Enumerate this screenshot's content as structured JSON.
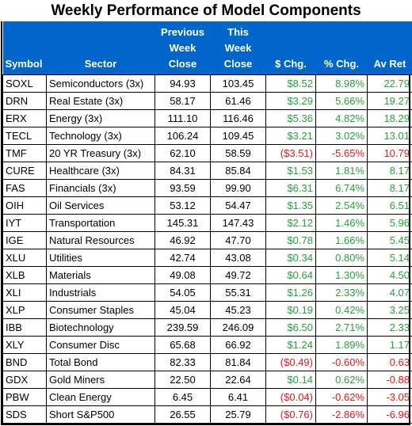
{
  "title": "Weekly Performance of Model Components",
  "headers": {
    "symbol": "Symbol",
    "sector": "Sector",
    "prev_close": [
      "Previous",
      "Week",
      "Close"
    ],
    "this_close": [
      "This",
      "Week",
      "Close"
    ],
    "dollar_chg": "$ Chg.",
    "pct_chg": "% Chg.",
    "av_ret": "Av Ret"
  },
  "rows": [
    {
      "symbol": "SOXL",
      "sector": "Semiconductors (3x)",
      "prev": "94.93",
      "this": "103.45",
      "dchg": "$8.52",
      "pchg": "8.98%",
      "avret": "22.79",
      "sign": "pos"
    },
    {
      "symbol": "DRN",
      "sector": "Real Estate (3x)",
      "prev": "58.17",
      "this": "61.46",
      "dchg": "$3.29",
      "pchg": "5.66%",
      "avret": "19.27",
      "sign": "pos"
    },
    {
      "symbol": "ERX",
      "sector": "Energy (3x)",
      "prev": "111.10",
      "this": "116.46",
      "dchg": "$5.36",
      "pchg": "4.82%",
      "avret": "18.29",
      "sign": "pos"
    },
    {
      "symbol": "TECL",
      "sector": "Technology (3x)",
      "prev": "106.24",
      "this": "109.45",
      "dchg": "$3.21",
      "pchg": "3.02%",
      "avret": "13.01",
      "sign": "pos"
    },
    {
      "symbol": "TMF",
      "sector": "20 YR Treasury (3x)",
      "prev": "62.10",
      "this": "58.59",
      "dchg": "($3.51)",
      "pchg": "-5.65%",
      "avret": "10.79",
      "sign": "neg"
    },
    {
      "symbol": "CURE",
      "sector": "Healthcare (3x)",
      "prev": "84.31",
      "this": "85.84",
      "dchg": "$1.53",
      "pchg": "1.81%",
      "avret": "8.17",
      "sign": "pos"
    },
    {
      "symbol": "FAS",
      "sector": "Financials (3x)",
      "prev": "93.59",
      "this": "99.90",
      "dchg": "$6.31",
      "pchg": "6.74%",
      "avret": "8.17",
      "sign": "pos"
    },
    {
      "symbol": "OIH",
      "sector": "Oil Services",
      "prev": "53.12",
      "this": "54.47",
      "dchg": "$1.35",
      "pchg": "2.54%",
      "avret": "6.51",
      "sign": "pos"
    },
    {
      "symbol": "IYT",
      "sector": "Transportation",
      "prev": "145.31",
      "this": "147.43",
      "dchg": "$2.12",
      "pchg": "1.46%",
      "avret": "5.96",
      "sign": "pos"
    },
    {
      "symbol": "IGE",
      "sector": "Natural Resources",
      "prev": "46.92",
      "this": "47.70",
      "dchg": "$0.78",
      "pchg": "1.66%",
      "avret": "5.45",
      "sign": "pos"
    },
    {
      "symbol": "XLU",
      "sector": "Utilities",
      "prev": "42.74",
      "this": "43.08",
      "dchg": "$0.34",
      "pchg": "0.80%",
      "avret": "5.14",
      "sign": "pos"
    },
    {
      "symbol": "XLB",
      "sector": "Materials",
      "prev": "49.08",
      "this": "49.72",
      "dchg": "$0.64",
      "pchg": "1.30%",
      "avret": "4.50",
      "sign": "pos"
    },
    {
      "symbol": "XLI",
      "sector": "Industrials",
      "prev": "54.05",
      "this": "55.31",
      "dchg": "$1.26",
      "pchg": "2.33%",
      "avret": "4.07",
      "sign": "pos"
    },
    {
      "symbol": "XLP",
      "sector": "Consumer Staples",
      "prev": "45.04",
      "this": "45.23",
      "dchg": "$0.19",
      "pchg": "0.42%",
      "avret": "3.25",
      "sign": "pos"
    },
    {
      "symbol": "IBB",
      "sector": "Biotechnology",
      "prev": "239.59",
      "this": "246.09",
      "dchg": "$6.50",
      "pchg": "2.71%",
      "avret": "2.33",
      "sign": "pos"
    },
    {
      "symbol": "XLY",
      "sector": "Consumer Disc",
      "prev": "65.68",
      "this": "66.92",
      "dchg": "$1.24",
      "pchg": "1.89%",
      "avret": "1.17",
      "sign": "pos"
    },
    {
      "symbol": "BND",
      "sector": "Total Bond",
      "prev": "82.33",
      "this": "81.84",
      "dchg": "($0.49)",
      "pchg": "-0.60%",
      "avret": "0.63",
      "sign": "neg"
    },
    {
      "symbol": "GDX",
      "sector": "Gold Miners",
      "prev": "22.50",
      "this": "22.64",
      "dchg": "$0.14",
      "pchg": "0.62%",
      "avret": "-0.88",
      "sign": "pos",
      "avsign": "neg"
    },
    {
      "symbol": "PBW",
      "sector": "Clean Energy",
      "prev": "6.45",
      "this": "6.41",
      "dchg": "($0.04)",
      "pchg": "-0.62%",
      "avret": "-3.05",
      "sign": "neg"
    },
    {
      "symbol": "SDS",
      "sector": "Short S&P500",
      "prev": "26.55",
      "this": "25.79",
      "dchg": "($0.76)",
      "pchg": "-2.86%",
      "avret": "-6.96",
      "sign": "neg"
    }
  ],
  "colors": {
    "header_bg": "#0066cc",
    "positive": "#28a03c",
    "negative": "#e01818"
  }
}
